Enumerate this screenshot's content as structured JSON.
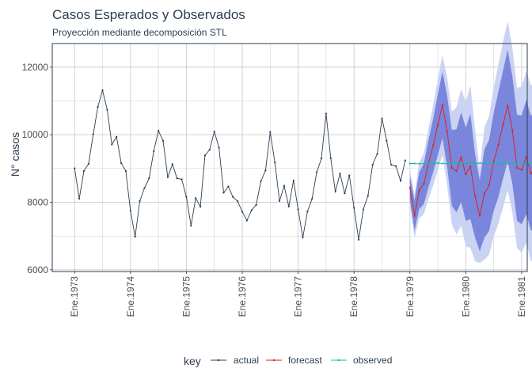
{
  "chart_data": {
    "type": "line",
    "title": "Casos Esperados y Observados",
    "subtitle": "Proyección mediante decomposición STL",
    "xlabel": "",
    "ylabel": "N° casos",
    "xlim": [
      1972.6,
      1981.1
    ],
    "ylim": [
      5950,
      12700
    ],
    "yticks": [
      6000,
      8000,
      10000,
      12000
    ],
    "ytick_labels": [
      "6000",
      "8000",
      "10000",
      "12000"
    ],
    "xticks": [
      1973,
      1974,
      1975,
      1976,
      1977,
      1978,
      1979,
      1980,
      1981
    ],
    "xtick_labels": [
      "Ene.1973",
      "Ene.1974",
      "Ene.1975",
      "Ene.1976",
      "Ene.1977",
      "Ene.1978",
      "Ene.1979",
      "Ene.1980",
      "Ene.1981"
    ],
    "grid": true,
    "legend": {
      "title": "key",
      "position": "bottom",
      "entries": [
        "actual",
        "forecast",
        "observed"
      ]
    },
    "colors": {
      "actual": "#2c3e50",
      "forecast": "#e31a1c",
      "observed": "#18bc9c",
      "band95": "#cbd3f4",
      "band80": "#7986dc",
      "grid": "#cccccc",
      "panel_border": "#2c3e50"
    },
    "series": [
      {
        "name": "actual",
        "start": 1973.0,
        "step": 0.0833333,
        "values": [
          9007,
          8106,
          8928,
          9137,
          10017,
          10826,
          11317,
          10744,
          9713,
          9938,
          9161,
          8927,
          7750,
          6981,
          8038,
          8422,
          8714,
          9512,
          10120,
          9823,
          8743,
          9129,
          8710,
          8680,
          8162,
          7306,
          8124,
          7870,
          9387,
          9556,
          10093,
          9620,
          8285,
          8466,
          8160,
          8034,
          7717,
          7461,
          7767,
          7925,
          8623,
          8945,
          10078,
          9179,
          8037,
          8488,
          7874,
          8647,
          7792,
          6957,
          7726,
          8106,
          8890,
          9299,
          10625,
          9302,
          8314,
          8850,
          8265,
          8796,
          7836,
          6892,
          7791,
          8192,
          9115,
          9434,
          10484,
          9827,
          9110,
          9070,
          8633,
          9240
        ]
      },
      {
        "name": "forecast",
        "start": 1979.0,
        "step": 0.0833333,
        "values": [
          8430,
          7596,
          8346,
          8550,
          9150,
          9690,
          10300,
          10880,
          10100,
          9020,
          8930,
          9330,
          8830,
          9060,
          8190,
          7600,
          8260,
          8500,
          9200,
          9710,
          10300,
          10860,
          10140,
          9020,
          8960,
          9340,
          8850,
          9050
        ],
        "lo80": [
          8080,
          7150,
          7800,
          7950,
          8450,
          8900,
          9400,
          9900,
          9050,
          7900,
          7700,
          8000,
          7450,
          7500,
          6950,
          6550,
          6950,
          7150,
          7750,
          8150,
          8700,
          9200,
          8550,
          7450,
          7350,
          7650,
          7150,
          7300
        ],
        "hi80": [
          8780,
          8040,
          8890,
          9150,
          9850,
          10480,
          11200,
          11860,
          11150,
          10140,
          10160,
          10660,
          10210,
          10620,
          9430,
          8650,
          9570,
          9850,
          10650,
          11270,
          11900,
          12520,
          11730,
          10590,
          10570,
          11030,
          10550,
          10800
        ],
        "lo95": [
          7900,
          6950,
          7520,
          7650,
          8100,
          8500,
          8950,
          9400,
          8500,
          7350,
          7050,
          7300,
          6700,
          6650,
          6250,
          6200,
          6300,
          6450,
          7000,
          7350,
          7850,
          8350,
          7700,
          6650,
          6500,
          6800,
          6250,
          6400
        ],
        "hi95": [
          8960,
          8240,
          9170,
          9450,
          10200,
          10880,
          11650,
          12360,
          11700,
          10690,
          10810,
          11360,
          10960,
          11470,
          10130,
          9000,
          10220,
          10550,
          11400,
          12070,
          12750,
          13370,
          12580,
          11390,
          11420,
          11880,
          11450,
          11700
        ]
      },
      {
        "name": "observed",
        "start": 1979.0,
        "step": 0.0833333,
        "values": [
          9150,
          9150,
          9140,
          9150,
          9155,
          9150,
          9160,
          9150,
          9145,
          9150,
          9160,
          9150,
          9150,
          9155,
          9150,
          9160,
          9150,
          9150,
          9145,
          9150,
          9155,
          9150,
          9150,
          9150,
          9155,
          9150,
          9150,
          9150
        ]
      }
    ]
  }
}
